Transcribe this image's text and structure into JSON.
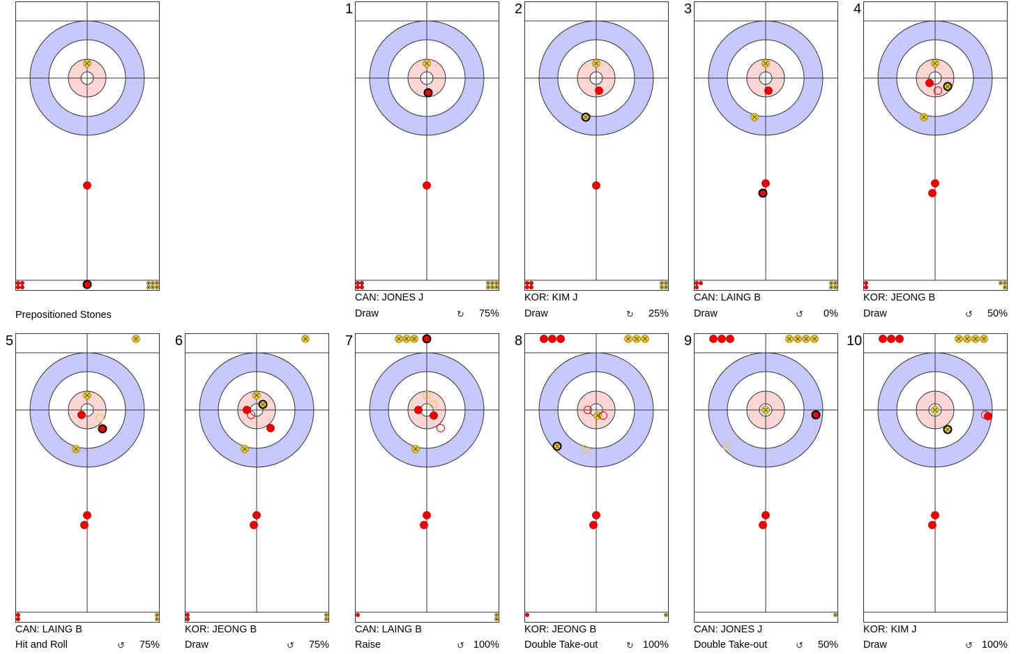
{
  "title": "Prepositioned Stones",
  "colors": {
    "red_stone": "#ee0000",
    "yellow_stone": "#e8c830",
    "house_blue": "#c8c8ff",
    "house_red": "#ffd6d6",
    "line": "#333333"
  },
  "shots": [
    {
      "number": "1",
      "player": "CAN: JONES J",
      "shot_type": "Draw",
      "rotation": "↻",
      "percentage": "75%"
    },
    {
      "number": "2",
      "player": "KOR: KIM J",
      "shot_type": "Draw",
      "rotation": "↻",
      "percentage": "25%"
    },
    {
      "number": "3",
      "player": "CAN: LAING B",
      "shot_type": "Draw",
      "rotation": "↺",
      "percentage": "0%"
    },
    {
      "number": "4",
      "player": "KOR: JEONG B",
      "shot_type": "Draw",
      "rotation": "↺",
      "percentage": "50%"
    },
    {
      "number": "5",
      "player": "CAN: LAING B",
      "shot_type": "Hit and Roll",
      "rotation": "↺",
      "percentage": "75%"
    },
    {
      "number": "6",
      "player": "KOR: JEONG B",
      "shot_type": "Draw",
      "rotation": "↺",
      "percentage": "75%"
    },
    {
      "number": "7",
      "player": "CAN: LAING B",
      "shot_type": "Raise",
      "rotation": "↺",
      "percentage": "100%"
    },
    {
      "number": "8",
      "player": "KOR: JEONG B",
      "shot_type": "Double Take-out",
      "rotation": "↻",
      "percentage": "100%"
    },
    {
      "number": "9",
      "player": "CAN: JONES J",
      "shot_type": "Double Take-out",
      "rotation": "↺",
      "percentage": "50%"
    },
    {
      "number": "10",
      "player": "KOR: KIM J",
      "shot_type": "Draw",
      "rotation": "↺",
      "percentage": "100%"
    }
  ]
}
